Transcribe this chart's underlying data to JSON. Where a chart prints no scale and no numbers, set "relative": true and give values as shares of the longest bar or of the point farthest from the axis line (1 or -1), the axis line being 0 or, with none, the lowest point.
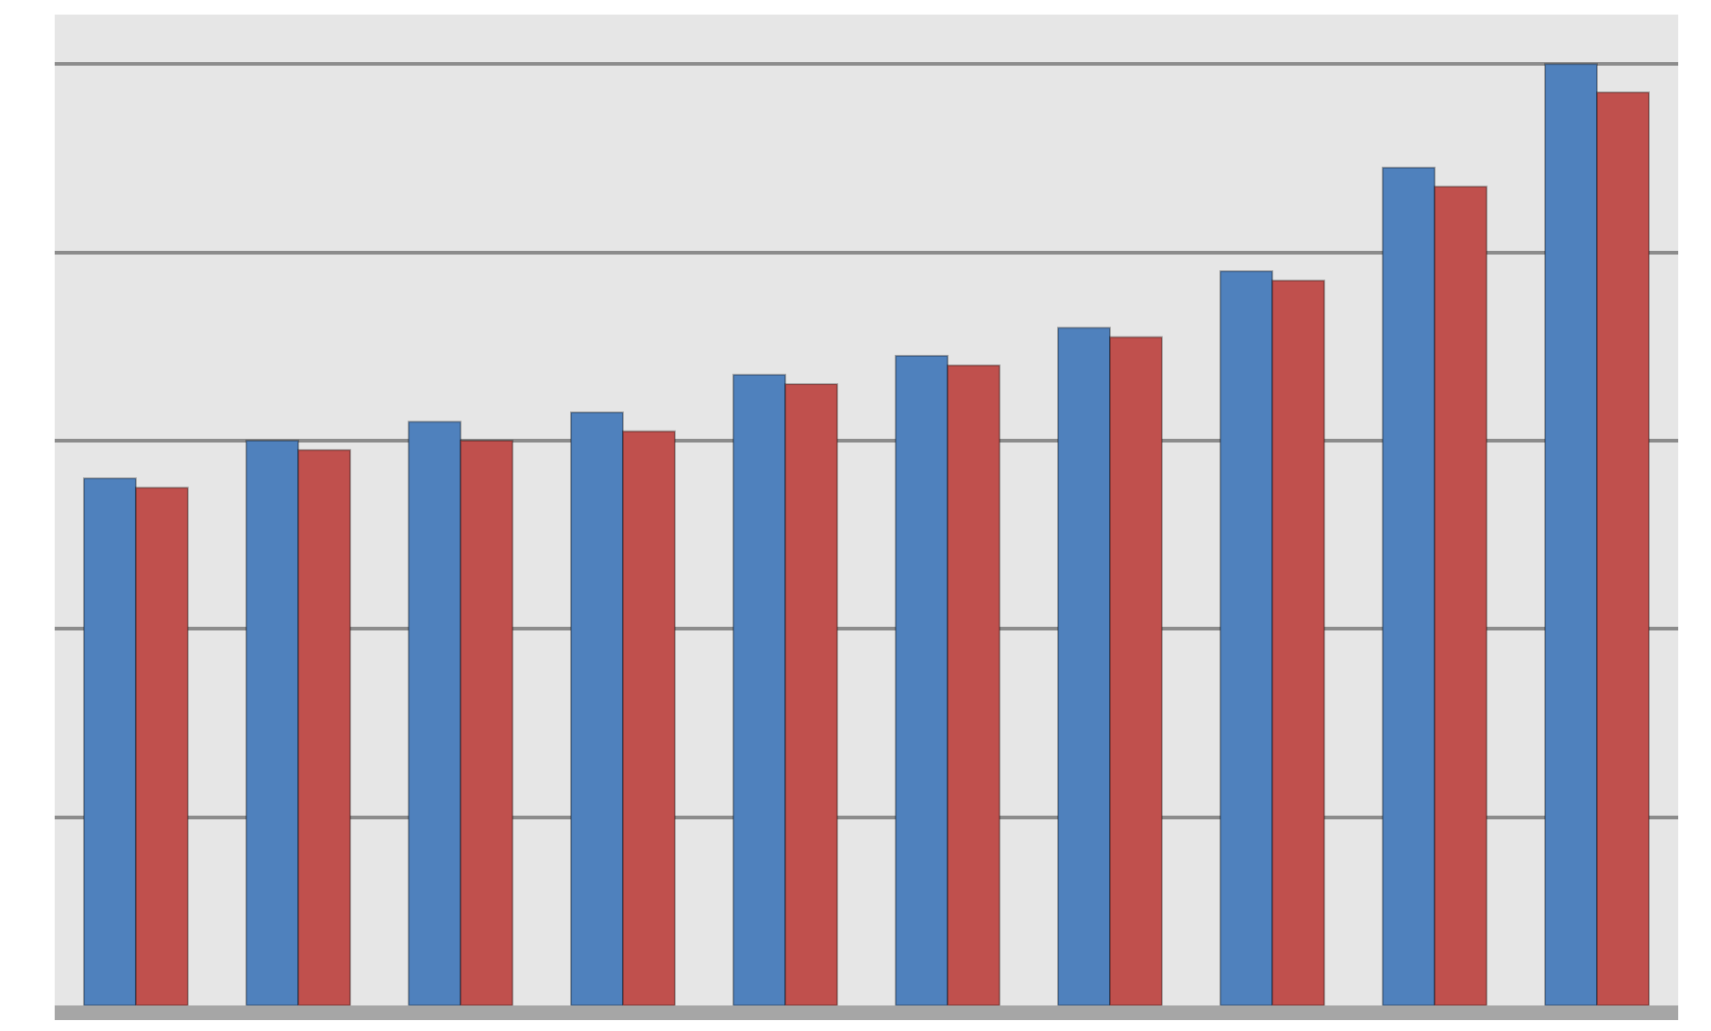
{
  "chart_data": {
    "type": "bar",
    "relative": true,
    "grid": "y",
    "categories": [
      null,
      null,
      null,
      null,
      null,
      null,
      null,
      null,
      null,
      null
    ],
    "series": [
      {
        "color": "#4f81bd",
        "values": [
          0.56,
          0.6,
          0.62,
          0.63,
          0.67,
          0.69,
          0.72,
          0.78,
          0.89,
          1
        ]
      },
      {
        "color": "#c0504d",
        "values": [
          0.55,
          0.59,
          0.6,
          0.61,
          0.66,
          0.68,
          0.71,
          0.77,
          0.87,
          0.97
        ]
      }
    ]
  }
}
